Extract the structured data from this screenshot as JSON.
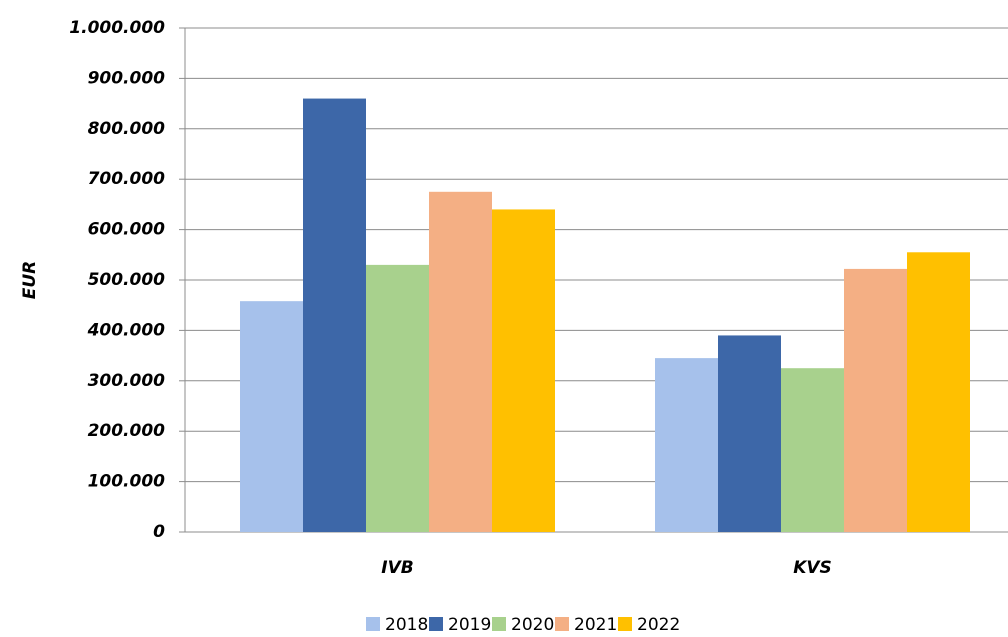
{
  "chart_data": {
    "type": "bar",
    "y_label": "EUR",
    "categories": [
      "IVB",
      "KVS"
    ],
    "series": [
      {
        "name": "2018",
        "color": "#a6c1eb",
        "values": [
          458000,
          345000
        ]
      },
      {
        "name": "2019",
        "color": "#3d67a8",
        "values": [
          860000,
          390000
        ]
      },
      {
        "name": "2020",
        "color": "#a8d18d",
        "values": [
          530000,
          325000
        ]
      },
      {
        "name": "2021",
        "color": "#f4af84",
        "values": [
          675000,
          522000
        ]
      },
      {
        "name": "2022",
        "color": "#ffc000",
        "values": [
          640000,
          555000
        ]
      }
    ],
    "ylim": [
      0,
      1000000
    ],
    "yticks": [
      0,
      {
        "value": 100000,
        "label": "100.000"
      },
      {
        "value": 200000,
        "label": "200.000"
      },
      {
        "value": 300000,
        "label": "300.000"
      },
      {
        "value": 400000,
        "label": "400.000"
      },
      {
        "value": 500000,
        "label": "500.000"
      },
      {
        "value": 600000,
        "label": "600.000"
      },
      {
        "value": 700000,
        "label": "700.000"
      },
      {
        "value": 800000,
        "label": "800.000"
      },
      {
        "value": 900000,
        "label": "900.000"
      },
      {
        "value": 1000000,
        "label": "1.000.000"
      }
    ],
    "grid": true,
    "legend": "bottom"
  }
}
